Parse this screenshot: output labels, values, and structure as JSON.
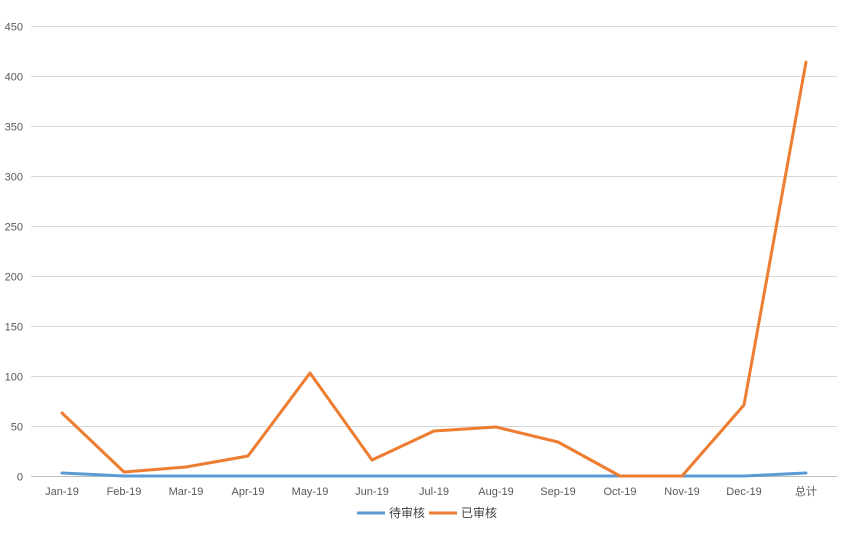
{
  "chart_data": {
    "type": "line",
    "categories": [
      "Jan-19",
      "Feb-19",
      "Mar-19",
      "Apr-19",
      "May-19",
      "Jun-19",
      "Jul-19",
      "Aug-19",
      "Sep-19",
      "Oct-19",
      "Nov-19",
      "Dec-19",
      "总计"
    ],
    "series": [
      {
        "name": "待审核",
        "color": "#5b9bd5",
        "values": [
          3,
          0,
          0,
          0,
          0,
          0,
          0,
          0,
          0,
          0,
          0,
          0,
          3
        ]
      },
      {
        "name": "已审核",
        "color": "#ed7d31",
        "values": [
          63,
          4,
          9,
          20,
          103,
          16,
          45,
          49,
          34,
          0,
          0,
          71,
          414
        ]
      }
    ],
    "ylim": [
      0,
      450
    ],
    "yticks": [
      0,
      50,
      100,
      150,
      200,
      250,
      300,
      350,
      400,
      450
    ],
    "grid": true,
    "legend_position": "bottom"
  }
}
